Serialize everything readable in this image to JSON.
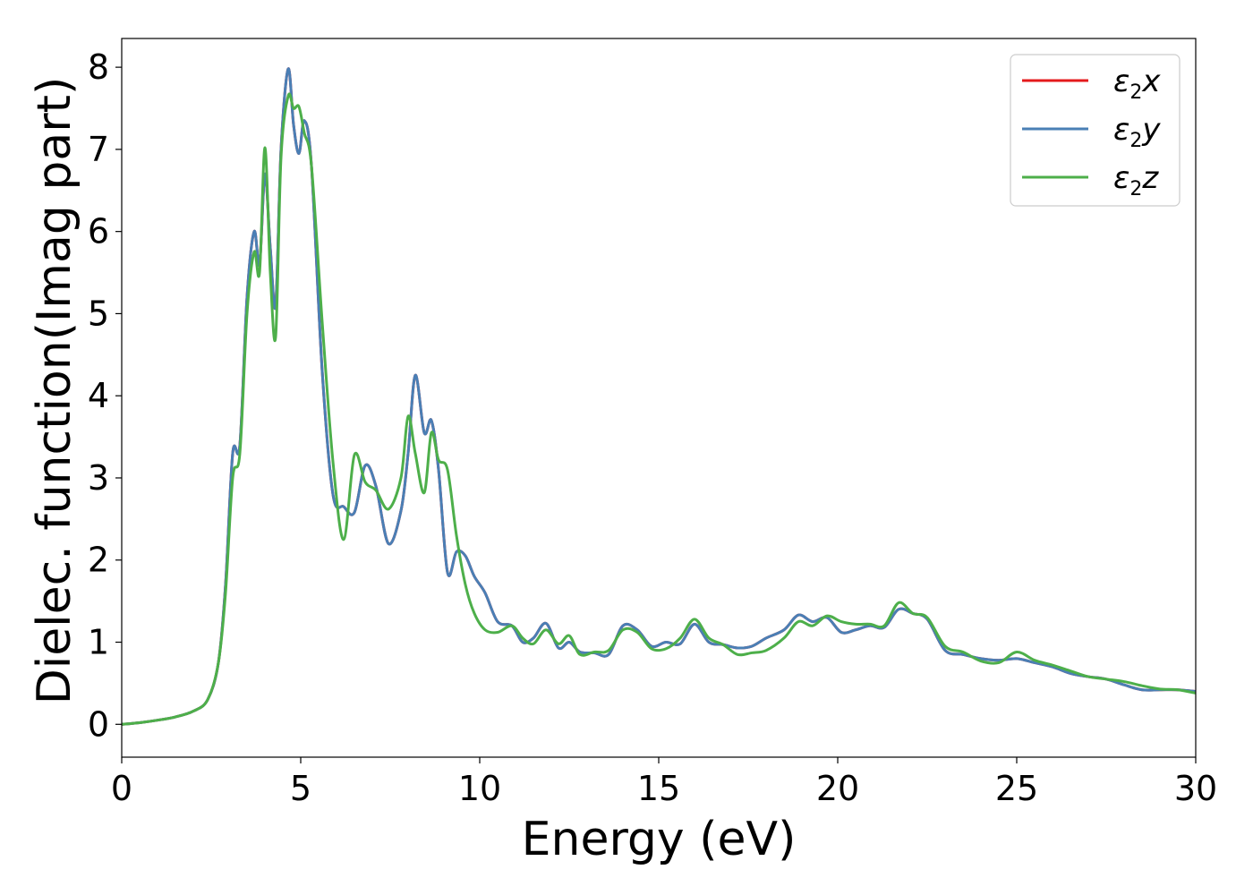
{
  "chart_data": {
    "type": "line",
    "xlabel": "Energy (eV)",
    "ylabel": "Dielec. function(Imag part)",
    "xlim": [
      0,
      30
    ],
    "ylim": [
      -0.4,
      8.35
    ],
    "xticks": [
      0,
      5,
      10,
      15,
      20,
      25,
      30
    ],
    "yticks": [
      0,
      1,
      2,
      3,
      4,
      5,
      6,
      7,
      8
    ],
    "grid": false,
    "legend_position": "top-right",
    "series": [
      {
        "name": "ε2x",
        "legend": {
          "base": "ε",
          "sub": "2",
          "var": "x"
        },
        "color": "#e41a1c",
        "x": [
          0,
          0.5,
          1,
          1.5,
          2,
          2.4,
          2.7,
          2.9,
          3.1,
          3.3,
          3.5,
          3.7,
          3.85,
          4.0,
          4.15,
          4.3,
          4.45,
          4.65,
          4.8,
          4.95,
          5.1,
          5.3,
          5.6,
          5.9,
          6.2,
          6.5,
          6.8,
          7.1,
          7.45,
          7.8,
          8.0,
          8.2,
          8.45,
          8.65,
          8.85,
          9.1,
          9.35,
          9.6,
          9.85,
          10.15,
          10.5,
          10.9,
          11.2,
          11.5,
          11.85,
          12.2,
          12.5,
          12.8,
          13.2,
          13.6,
          14.0,
          14.4,
          14.8,
          15.2,
          15.6,
          16.0,
          16.4,
          16.8,
          17.2,
          17.6,
          18.0,
          18.5,
          18.9,
          19.3,
          19.7,
          20.1,
          20.5,
          20.9,
          21.3,
          21.7,
          22.1,
          22.5,
          23.0,
          23.5,
          24.0,
          24.5,
          25.0,
          25.5,
          26.0,
          26.5,
          27.0,
          27.5,
          28.0,
          28.5,
          29.0,
          29.5,
          30.0
        ],
        "y": [
          0.0,
          0.02,
          0.05,
          0.09,
          0.16,
          0.3,
          0.75,
          1.7,
          3.3,
          3.4,
          5.2,
          6.0,
          5.6,
          6.7,
          5.8,
          5.1,
          7.0,
          7.98,
          7.3,
          6.95,
          7.35,
          6.8,
          4.3,
          2.8,
          2.65,
          2.58,
          3.15,
          2.9,
          2.2,
          2.6,
          3.3,
          4.25,
          3.55,
          3.7,
          3.1,
          1.85,
          2.1,
          2.05,
          1.8,
          1.6,
          1.25,
          1.2,
          1.0,
          1.05,
          1.23,
          0.93,
          1.0,
          0.88,
          0.87,
          0.85,
          1.2,
          1.15,
          0.95,
          1.0,
          0.98,
          1.22,
          1.0,
          0.97,
          0.93,
          0.95,
          1.05,
          1.15,
          1.33,
          1.25,
          1.3,
          1.12,
          1.15,
          1.2,
          1.18,
          1.4,
          1.35,
          1.28,
          0.9,
          0.85,
          0.8,
          0.78,
          0.8,
          0.75,
          0.7,
          0.62,
          0.58,
          0.55,
          0.48,
          0.42,
          0.42,
          0.42,
          0.4
        ]
      },
      {
        "name": "ε2y",
        "legend": {
          "base": "ε",
          "sub": "2",
          "var": "y"
        },
        "color": "#4a7fb5",
        "x": [
          0,
          0.5,
          1,
          1.5,
          2,
          2.4,
          2.7,
          2.9,
          3.1,
          3.3,
          3.5,
          3.7,
          3.85,
          4.0,
          4.15,
          4.3,
          4.45,
          4.65,
          4.8,
          4.95,
          5.1,
          5.3,
          5.6,
          5.9,
          6.2,
          6.5,
          6.8,
          7.1,
          7.45,
          7.8,
          8.0,
          8.2,
          8.45,
          8.65,
          8.85,
          9.1,
          9.35,
          9.6,
          9.85,
          10.15,
          10.5,
          10.9,
          11.2,
          11.5,
          11.85,
          12.2,
          12.5,
          12.8,
          13.2,
          13.6,
          14.0,
          14.4,
          14.8,
          15.2,
          15.6,
          16.0,
          16.4,
          16.8,
          17.2,
          17.6,
          18.0,
          18.5,
          18.9,
          19.3,
          19.7,
          20.1,
          20.5,
          20.9,
          21.3,
          21.7,
          22.1,
          22.5,
          23.0,
          23.5,
          24.0,
          24.5,
          25.0,
          25.5,
          26.0,
          26.5,
          27.0,
          27.5,
          28.0,
          28.5,
          29.0,
          29.5,
          30.0
        ],
        "y": [
          0.0,
          0.02,
          0.05,
          0.09,
          0.16,
          0.3,
          0.75,
          1.7,
          3.3,
          3.4,
          5.2,
          6.0,
          5.6,
          6.7,
          5.8,
          5.1,
          7.0,
          7.98,
          7.3,
          6.95,
          7.35,
          6.8,
          4.3,
          2.8,
          2.65,
          2.58,
          3.15,
          2.9,
          2.2,
          2.6,
          3.3,
          4.25,
          3.55,
          3.7,
          3.1,
          1.85,
          2.1,
          2.05,
          1.8,
          1.6,
          1.25,
          1.2,
          1.0,
          1.05,
          1.23,
          0.93,
          1.0,
          0.88,
          0.87,
          0.85,
          1.2,
          1.15,
          0.95,
          1.0,
          0.98,
          1.22,
          1.0,
          0.97,
          0.93,
          0.95,
          1.05,
          1.15,
          1.33,
          1.25,
          1.3,
          1.12,
          1.15,
          1.2,
          1.18,
          1.4,
          1.35,
          1.28,
          0.9,
          0.85,
          0.8,
          0.78,
          0.8,
          0.75,
          0.7,
          0.62,
          0.58,
          0.55,
          0.48,
          0.42,
          0.42,
          0.42,
          0.4
        ]
      },
      {
        "name": "ε2z",
        "legend": {
          "base": "ε",
          "sub": "2",
          "var": "z"
        },
        "color": "#4daf4a",
        "x": [
          0,
          0.5,
          1,
          1.5,
          2,
          2.4,
          2.7,
          2.9,
          3.1,
          3.3,
          3.5,
          3.7,
          3.85,
          4.0,
          4.15,
          4.3,
          4.45,
          4.65,
          4.8,
          4.95,
          5.1,
          5.3,
          5.6,
          5.9,
          6.2,
          6.5,
          6.8,
          7.1,
          7.45,
          7.8,
          8.0,
          8.2,
          8.45,
          8.65,
          8.85,
          9.1,
          9.35,
          9.6,
          9.85,
          10.15,
          10.5,
          10.9,
          11.2,
          11.5,
          11.85,
          12.2,
          12.5,
          12.8,
          13.2,
          13.6,
          14.0,
          14.4,
          14.8,
          15.2,
          15.6,
          16.0,
          16.4,
          16.8,
          17.2,
          17.6,
          18.0,
          18.5,
          18.9,
          19.3,
          19.7,
          20.1,
          20.5,
          20.9,
          21.3,
          21.7,
          22.1,
          22.5,
          23.0,
          23.5,
          24.0,
          24.5,
          25.0,
          25.5,
          26.0,
          26.5,
          27.0,
          27.5,
          28.0,
          28.5,
          29.0,
          29.5,
          30.0
        ],
        "y": [
          0.0,
          0.02,
          0.05,
          0.09,
          0.16,
          0.3,
          0.75,
          1.6,
          3.0,
          3.3,
          5.0,
          5.75,
          5.5,
          7.02,
          5.5,
          4.72,
          6.9,
          7.65,
          7.5,
          7.52,
          7.2,
          6.8,
          4.9,
          3.2,
          2.25,
          3.28,
          2.95,
          2.85,
          2.62,
          3.0,
          3.75,
          3.3,
          2.82,
          3.55,
          3.22,
          3.1,
          2.3,
          1.7,
          1.35,
          1.15,
          1.12,
          1.2,
          1.05,
          0.98,
          1.15,
          0.98,
          1.08,
          0.85,
          0.88,
          0.9,
          1.15,
          1.12,
          0.92,
          0.92,
          1.05,
          1.28,
          1.05,
          0.97,
          0.85,
          0.87,
          0.9,
          1.05,
          1.25,
          1.2,
          1.32,
          1.25,
          1.22,
          1.22,
          1.2,
          1.48,
          1.35,
          1.3,
          0.95,
          0.88,
          0.77,
          0.75,
          0.88,
          0.78,
          0.72,
          0.65,
          0.58,
          0.55,
          0.52,
          0.47,
          0.43,
          0.42,
          0.38
        ]
      }
    ]
  }
}
